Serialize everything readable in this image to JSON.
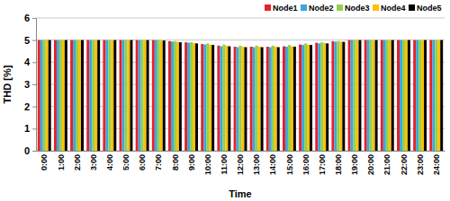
{
  "chart_data": {
    "type": "bar",
    "x_label": "Time",
    "y_label": "THD [%]",
    "categories": [
      "0:00",
      "1:00",
      "2:00",
      "3:00",
      "4:00",
      "5:00",
      "6:00",
      "7:00",
      "8:00",
      "9:00",
      "10:00",
      "11:00",
      "12:00",
      "13:00",
      "14:00",
      "15:00",
      "16:00",
      "17:00",
      "18:00",
      "19:00",
      "20:00",
      "21:00",
      "22:00",
      "23:00",
      "24:00"
    ],
    "series": [
      {
        "name": "Node1",
        "color": "#e8202a",
        "values": [
          5.0,
          5.0,
          5.0,
          5.0,
          5.0,
          5.0,
          5.0,
          5.0,
          4.95,
          4.9,
          4.82,
          4.75,
          4.7,
          4.7,
          4.7,
          4.72,
          4.8,
          4.88,
          4.95,
          5.0,
          5.0,
          5.0,
          5.0,
          5.0,
          5.0
        ]
      },
      {
        "name": "Node2",
        "color": "#3aa8dc",
        "values": [
          5.0,
          5.0,
          5.0,
          5.0,
          5.0,
          5.0,
          5.0,
          5.0,
          4.93,
          4.88,
          4.8,
          4.72,
          4.68,
          4.68,
          4.68,
          4.7,
          4.78,
          4.85,
          4.93,
          5.0,
          5.0,
          5.0,
          5.0,
          5.0,
          5.0
        ]
      },
      {
        "name": "Node3",
        "color": "#92d050",
        "values": [
          5.0,
          5.0,
          5.0,
          5.0,
          5.0,
          5.0,
          5.0,
          5.0,
          4.95,
          4.9,
          4.85,
          4.8,
          4.75,
          4.75,
          4.75,
          4.78,
          4.85,
          4.9,
          4.95,
          5.0,
          5.0,
          5.0,
          5.0,
          5.0,
          5.0
        ]
      },
      {
        "name": "Node4",
        "color": "#ffc000",
        "values": [
          5.0,
          5.0,
          5.0,
          5.0,
          5.0,
          5.0,
          5.0,
          4.98,
          4.92,
          4.87,
          4.8,
          4.75,
          4.7,
          4.7,
          4.7,
          4.72,
          4.8,
          4.87,
          4.93,
          5.0,
          5.0,
          5.0,
          5.0,
          5.0,
          5.0
        ]
      },
      {
        "name": "Node5",
        "color": "#000000",
        "values": [
          5.0,
          5.0,
          5.0,
          5.0,
          5.0,
          5.0,
          5.0,
          4.98,
          4.9,
          4.85,
          4.78,
          4.72,
          4.68,
          4.68,
          4.68,
          4.7,
          4.78,
          4.85,
          4.92,
          5.0,
          5.0,
          5.0,
          5.0,
          5.0,
          5.0
        ]
      }
    ],
    "ylim": [
      0,
      6
    ],
    "yticks": [
      0,
      1,
      2,
      3,
      4,
      5,
      6
    ],
    "grid": true,
    "legend": "top-right"
  }
}
